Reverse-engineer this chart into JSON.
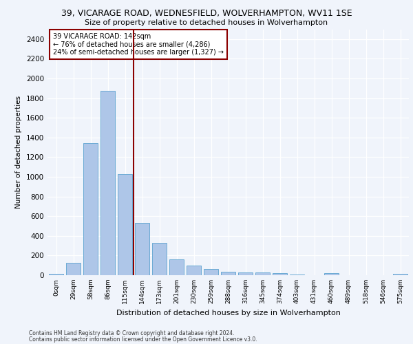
{
  "title_line1": "39, VICARAGE ROAD, WEDNESFIELD, WOLVERHAMPTON, WV11 1SE",
  "title_line2": "Size of property relative to detached houses in Wolverhampton",
  "xlabel": "Distribution of detached houses by size in Wolverhampton",
  "ylabel": "Number of detached properties",
  "bar_labels": [
    "0sqm",
    "29sqm",
    "58sqm",
    "86sqm",
    "115sqm",
    "144sqm",
    "173sqm",
    "201sqm",
    "230sqm",
    "259sqm",
    "288sqm",
    "316sqm",
    "345sqm",
    "374sqm",
    "403sqm",
    "431sqm",
    "460sqm",
    "489sqm",
    "518sqm",
    "546sqm",
    "575sqm"
  ],
  "bar_values": [
    15,
    125,
    1345,
    1875,
    1030,
    530,
    330,
    160,
    100,
    60,
    38,
    28,
    25,
    18,
    5,
    0,
    22,
    0,
    0,
    0,
    15
  ],
  "bar_color": "#aec6e8",
  "bar_edge_color": "#6aaad4",
  "vline_color": "#8b0000",
  "annotation_text": "39 VICARAGE ROAD: 142sqm\n← 76% of detached houses are smaller (4,286)\n24% of semi-detached houses are larger (1,327) →",
  "annotation_box_color": "#ffffff",
  "annotation_box_edge_color": "#8b0000",
  "ylim": [
    0,
    2500
  ],
  "yticks": [
    0,
    200,
    400,
    600,
    800,
    1000,
    1200,
    1400,
    1600,
    1800,
    2000,
    2200,
    2400
  ],
  "footer_line1": "Contains HM Land Registry data © Crown copyright and database right 2024.",
  "footer_line2": "Contains public sector information licensed under the Open Government Licence v3.0.",
  "bg_color": "#f0f4fb",
  "plot_bg_color": "#f0f4fb",
  "grid_color": "#ffffff"
}
